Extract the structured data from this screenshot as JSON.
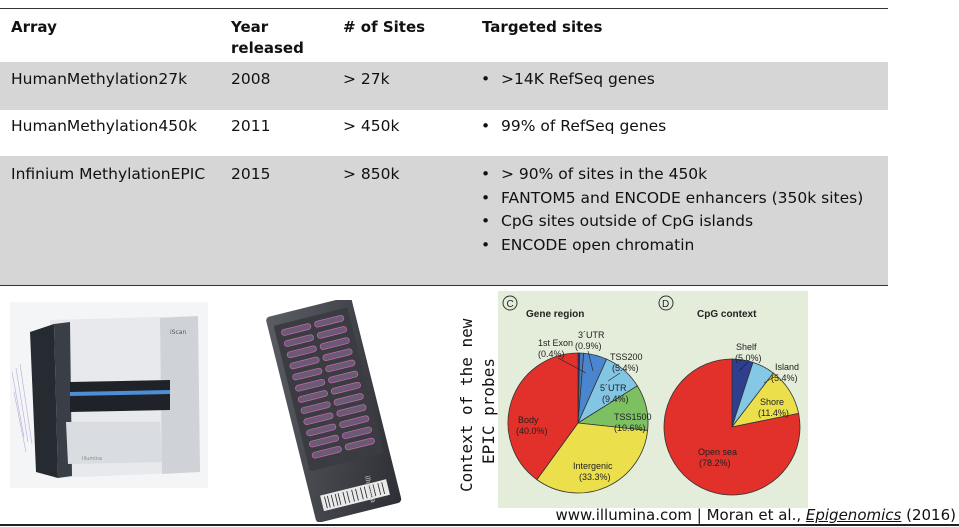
{
  "table": {
    "headers": {
      "array": "Array",
      "year": "Year",
      "year2": "released",
      "sites": "# of Sites",
      "targeted": "Targeted sites"
    },
    "rows": [
      {
        "array": "HumanMethylation27k",
        "year": "2008",
        "sites": "> 27k",
        "targeted": [
          ">14K RefSeq genes"
        ]
      },
      {
        "array": "HumanMethylation450k",
        "year": "2011",
        "sites": "> 450k",
        "targeted": [
          "99% of RefSeq genes"
        ]
      },
      {
        "array": "Infinium MethylationEPIC",
        "year": "2015",
        "sites": "> 850k",
        "targeted": [
          "> 90% of sites in the 450k",
          "FANTOM5 and ENCODE enhancers (350k sites)",
          "CpG sites outside of CpG islands",
          "ENCODE open chromatin"
        ]
      }
    ]
  },
  "scanner": {
    "brand": "iScan",
    "model": "Illumina"
  },
  "beadchip": {
    "brand": "illumina"
  },
  "side_label": {
    "line1": "Context of the new",
    "line2": "EPIC probes"
  },
  "figure": {
    "panel_c": {
      "letter": "C",
      "title": "Gene region",
      "slices": [
        {
          "label": "1st Exon",
          "value": "(0.4%)",
          "pct": 0.4,
          "color": "#3a2a8a"
        },
        {
          "label": "3´UTR",
          "value": "(0.9%)",
          "pct": 0.9,
          "color": "#4d7fc0"
        },
        {
          "label": "TSS200",
          "value": "(5.4%)",
          "pct": 5.4,
          "color": "#4a86d0"
        },
        {
          "label": "5´UTR",
          "value": "(9.4%)",
          "pct": 9.4,
          "color": "#82c6e4"
        },
        {
          "label": "TSS1500",
          "value": "(10.6%)",
          "pct": 10.6,
          "color": "#7cc062"
        },
        {
          "label": "Intergenic",
          "value": "(33.3%)",
          "pct": 33.3,
          "color": "#ecdf4c"
        },
        {
          "label": "Body",
          "value": "(40.0%)",
          "pct": 40.0,
          "color": "#e2302a"
        }
      ]
    },
    "panel_d": {
      "letter": "D",
      "title": "CpG context",
      "slices": [
        {
          "label": "Shelf",
          "value": "(5.0%)",
          "pct": 5.0,
          "color": "#2e3f8f"
        },
        {
          "label": "Island",
          "value": "(5.4%)",
          "pct": 5.4,
          "color": "#84c8e6"
        },
        {
          "label": "Shore",
          "value": "(11.4%)",
          "pct": 11.4,
          "color": "#ecdf4c"
        },
        {
          "label": "Open sea",
          "value": "(78.2%)",
          "pct": 78.2,
          "color": "#e2302a"
        }
      ]
    }
  },
  "citation": {
    "prefix": "www.illumina.com | Moran et al., ",
    "journal": "Epigenomics",
    "year": " (2016)"
  }
}
